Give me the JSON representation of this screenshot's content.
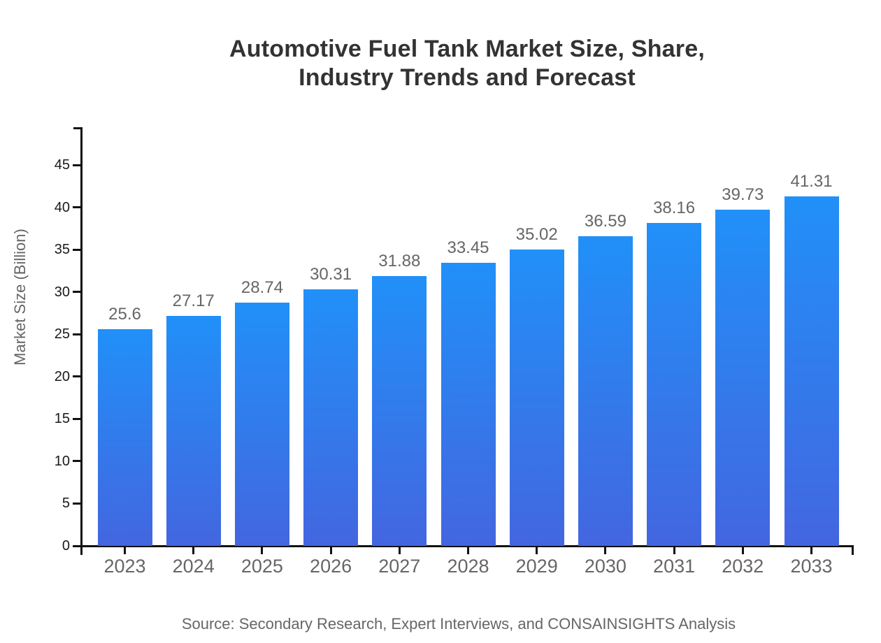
{
  "page": {
    "background": "#ffffff"
  },
  "chart_data": {
    "type": "bar",
    "title": "Automotive Fuel Tank Market Size, Share, Industry Trends and Forecast",
    "title_lines": [
      "Automotive Fuel Tank Market Size, Share,",
      "Industry Trends and Forecast"
    ],
    "categories": [
      "2023",
      "2024",
      "2025",
      "2026",
      "2027",
      "2028",
      "2029",
      "2030",
      "2031",
      "2032",
      "2033"
    ],
    "values": [
      25.6,
      27.17,
      28.74,
      30.31,
      31.88,
      33.45,
      35.02,
      36.59,
      38.16,
      39.73,
      41.31
    ],
    "value_labels": [
      "25.6",
      "27.17",
      "28.74",
      "30.31",
      "31.88",
      "33.45",
      "35.02",
      "36.59",
      "38.16",
      "39.73",
      "41.31"
    ],
    "xlabel": "",
    "ylabel": "Market Size (Billion)",
    "yticks": [
      0,
      5,
      10,
      15,
      20,
      25,
      30,
      35,
      40,
      45
    ],
    "ytick_labels": [
      "0",
      "5",
      "10",
      "15",
      "20",
      "25",
      "30",
      "35",
      "40",
      "45"
    ],
    "ylim": [
      0,
      49.5
    ],
    "grid": false,
    "legend": "none",
    "source": "Source: Secondary Research, Expert Interviews, and CONSAINSIGHTS Analysis",
    "colors": {
      "bar_gradient_top": "#2190F8",
      "bar_gradient_bottom": "#4366E0",
      "axis": "#111111",
      "y_tick_label": "#1a1a1a",
      "x_tick_label": "#666666",
      "value_label": "#666666",
      "title": "#333333",
      "axis_title": "#666666",
      "source_text": "#666666"
    }
  }
}
